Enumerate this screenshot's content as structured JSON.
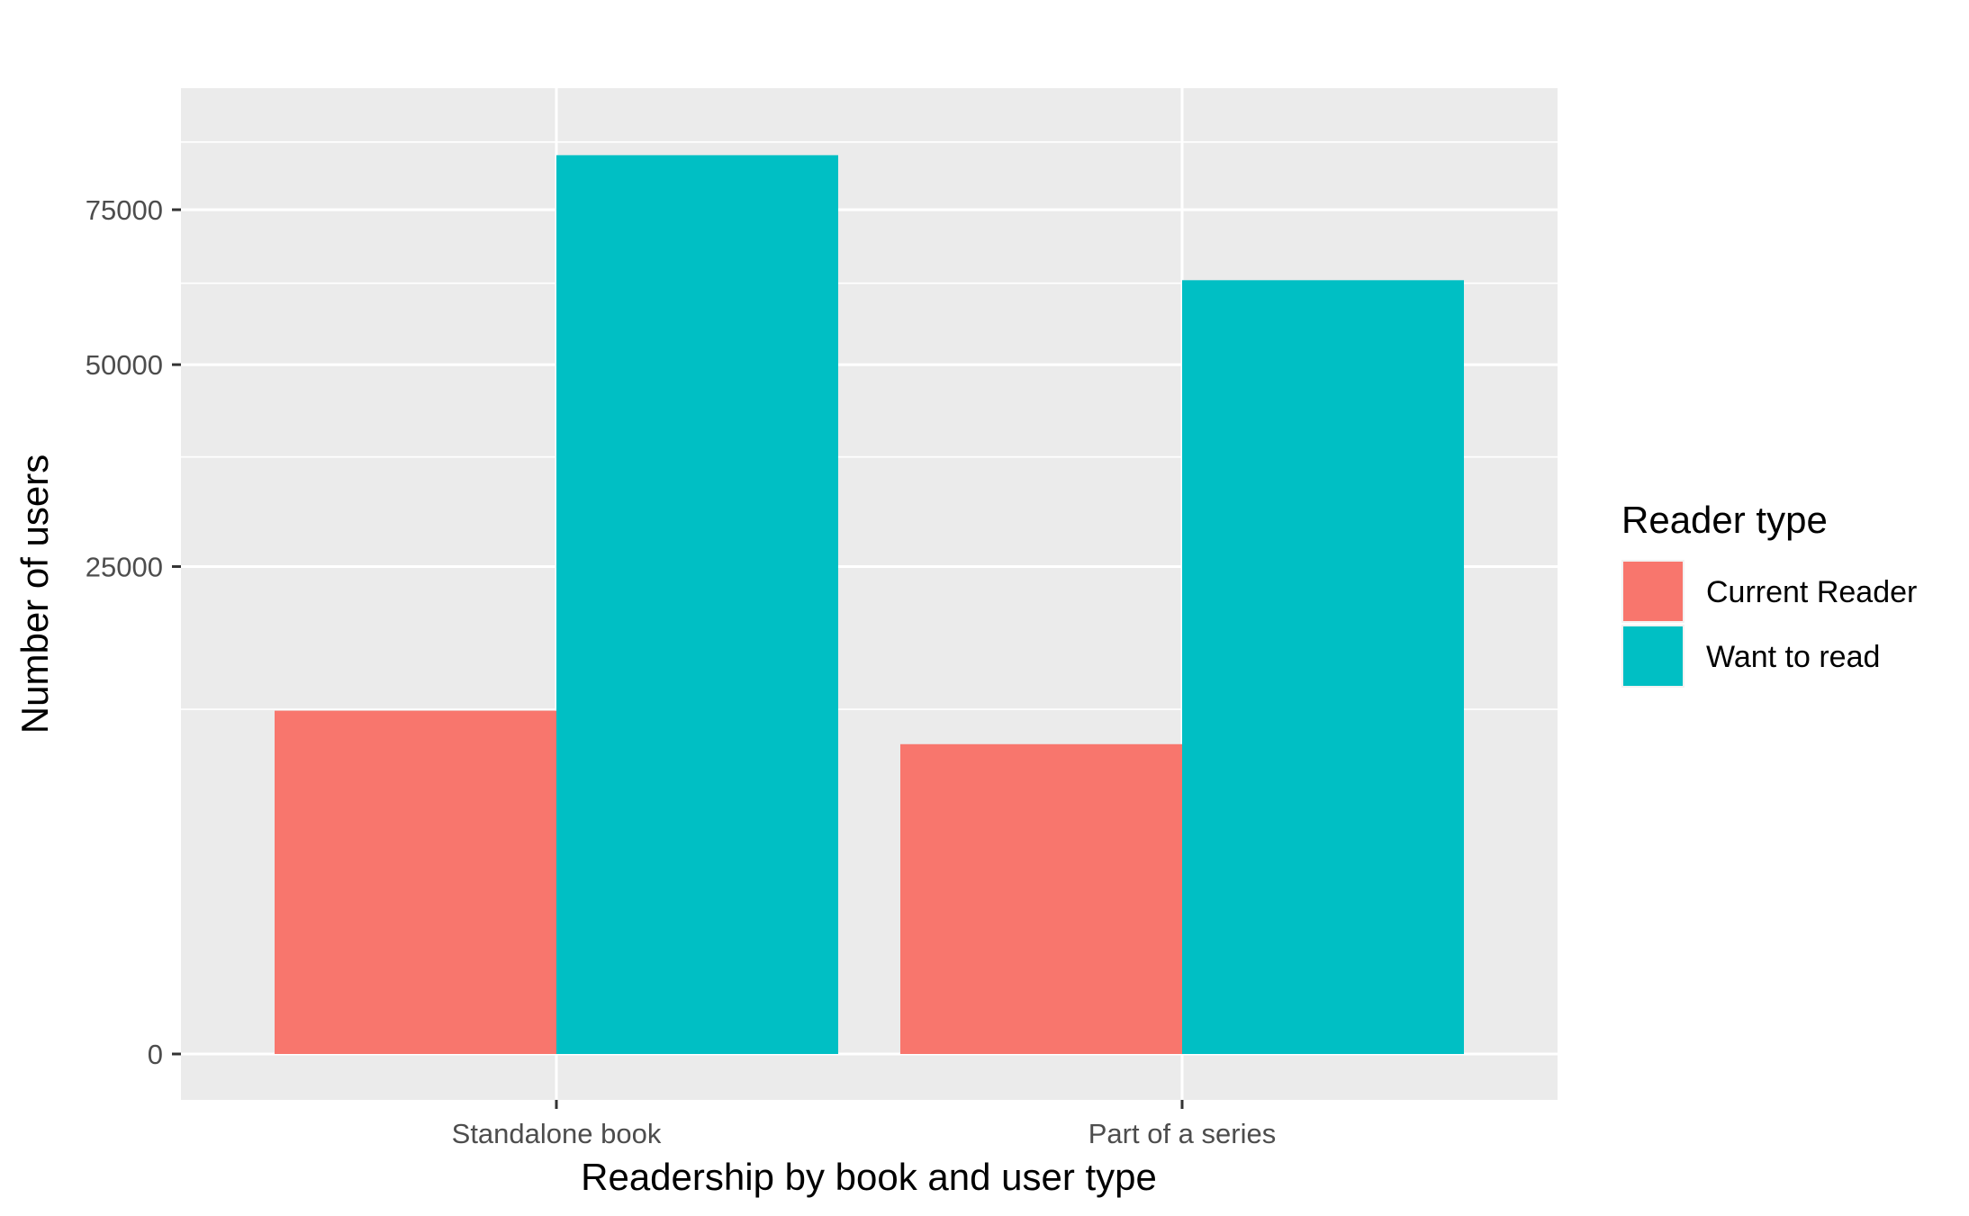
{
  "chart_data": {
    "type": "bar",
    "scale": "sqrt",
    "categories": [
      "Standalone book",
      "Part of a series"
    ],
    "series": [
      {
        "name": "Current Reader",
        "values": [
          12400,
          10100
        ],
        "color": "#F8766D"
      },
      {
        "name": "Want to read",
        "values": [
          85000,
          63000
        ],
        "color": "#00BFC4"
      }
    ],
    "yticks": [
      0,
      25000,
      50000,
      75000
    ],
    "ytick_labels": [
      "0",
      "25000",
      "50000",
      "75000"
    ],
    "xlabel": "Readership by book and user type",
    "ylabel": "Number of users",
    "ylim": [
      0,
      90000
    ],
    "legend": {
      "title": "Reader type",
      "position": "right"
    },
    "panel_background": "#EBEBEB",
    "grid": true
  }
}
